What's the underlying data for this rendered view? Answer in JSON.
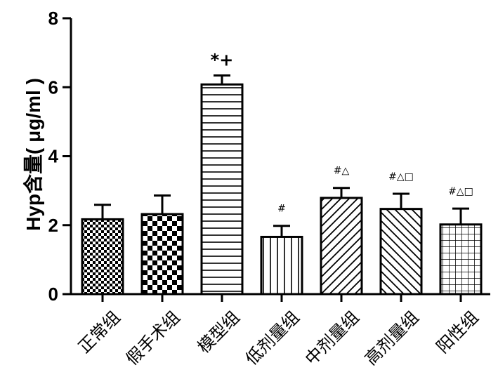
{
  "chart_data": {
    "type": "bar",
    "ylabel": "Hyp含量( μg/ml )",
    "ylim": [
      0,
      8
    ],
    "yticks": [
      0,
      2,
      4,
      6,
      8
    ],
    "categories": [
      "正常组",
      "假手术组",
      "模型组",
      "低剂量组",
      "中剂量组",
      "高剂量组",
      "阳性组"
    ],
    "values": [
      2.17,
      2.32,
      6.08,
      1.66,
      2.79,
      2.47,
      2.02
    ],
    "errors": [
      0.42,
      0.54,
      0.26,
      0.32,
      0.29,
      0.44,
      0.46
    ],
    "patterns": [
      "checker-fine",
      "checker-coarse",
      "horizontal-lines",
      "vertical-lines",
      "diagonal-up",
      "diagonal-down",
      "grid"
    ],
    "annotations": [
      "",
      "",
      "*+",
      "#",
      "#△",
      "#△□",
      "#△□"
    ]
  }
}
